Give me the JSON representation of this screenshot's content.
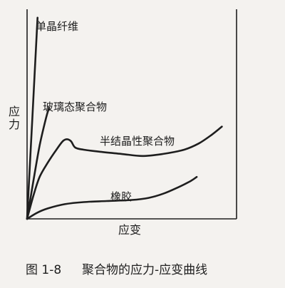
{
  "figure": {
    "caption_number": "图 1-8",
    "caption_text": "聚合物的应力-应变曲线"
  },
  "chart_data": {
    "type": "line",
    "title": "",
    "xlabel": "应变",
    "ylabel": "应力",
    "x_ticks": [],
    "y_ticks": [],
    "xlim": [
      0,
      100
    ],
    "ylim": [
      0,
      100
    ],
    "grid": false,
    "axis_color": "#1e1e1e",
    "curve_color": "#1e1e1e",
    "series": [
      {
        "name": "单晶纤维",
        "points": [
          [
            0,
            0
          ],
          [
            2.5,
            48
          ],
          [
            5,
            96
          ]
        ]
      },
      {
        "name": "玻璃态聚合物",
        "points": [
          [
            0,
            0
          ],
          [
            3,
            18
          ],
          [
            6,
            35
          ],
          [
            9,
            48
          ],
          [
            10.5,
            53
          ]
        ]
      },
      {
        "name": "半结晶性聚合物",
        "points": [
          [
            0,
            0
          ],
          [
            3,
            11
          ],
          [
            6,
            20
          ],
          [
            10,
            27
          ],
          [
            14,
            33
          ],
          [
            17,
            37
          ],
          [
            19,
            38
          ],
          [
            21,
            37
          ],
          [
            23,
            34
          ],
          [
            27,
            33
          ],
          [
            35,
            32
          ],
          [
            45,
            31
          ],
          [
            55,
            30
          ],
          [
            65,
            31
          ],
          [
            75,
            33
          ],
          [
            82,
            36
          ],
          [
            88,
            40
          ],
          [
            93,
            44
          ]
        ]
      },
      {
        "name": "橡胶",
        "points": [
          [
            0,
            0
          ],
          [
            5,
            3
          ],
          [
            10,
            5
          ],
          [
            18,
            7
          ],
          [
            27,
            8
          ],
          [
            38,
            8.5
          ],
          [
            50,
            9
          ],
          [
            58,
            10
          ],
          [
            65,
            12
          ],
          [
            72,
            15
          ],
          [
            78,
            18
          ],
          [
            81,
            20
          ]
        ]
      }
    ]
  }
}
